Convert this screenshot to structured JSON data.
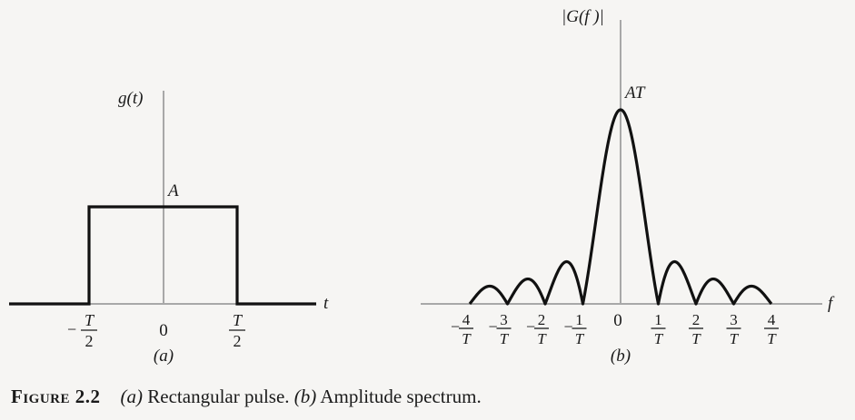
{
  "panel_a": {
    "y_axis_label": "g(t)",
    "t_axis_label": "t",
    "amplitude_label": "A",
    "tick_zero": "0",
    "tick_neg_minus": "−",
    "tick_num_T": "T",
    "tick_den_2": "2",
    "panel_label": "(a)"
  },
  "panel_b": {
    "y_axis_label": "|G(f )|",
    "f_axis_label": "f",
    "peak_label": "AT",
    "tick_zero": "0",
    "ticks": [
      {
        "sign": "−",
        "num": "4",
        "den": "T"
      },
      {
        "sign": "−",
        "num": "3",
        "den": "T"
      },
      {
        "sign": "−",
        "num": "2",
        "den": "T"
      },
      {
        "sign": "−",
        "num": "1",
        "den": "T"
      },
      {
        "sign": "",
        "num": "1",
        "den": "T"
      },
      {
        "sign": "",
        "num": "2",
        "den": "T"
      },
      {
        "sign": "",
        "num": "3",
        "den": "T"
      },
      {
        "sign": "",
        "num": "4",
        "den": "T"
      }
    ],
    "panel_label": "(b)"
  },
  "caption": {
    "figure_label": "Figure 2.2",
    "part_a_tag": "(a)",
    "part_a_text": " Rectangular pulse. ",
    "part_b_tag": "(b)",
    "part_b_text": " Amplitude spectrum."
  },
  "chart_data": [
    {
      "type": "line",
      "series": [
        {
          "x": [
            "-T",
            "-T/2",
            "-T/2",
            "T/2",
            "T/2",
            "T"
          ],
          "values": [
            0,
            0,
            "A",
            "A",
            0,
            0
          ]
        }
      ]
    },
    {
      "type": "line",
      "series": [
        {
          "function": "|sinc(fT)|",
          "xlim": [
            "-4/T",
            "4/T"
          ],
          "peak": "AT",
          "zeros": [
            "-4/T",
            "-3/T",
            "-2/T",
            "-1/T",
            "1/T",
            "2/T",
            "3/T",
            "4/T"
          ]
        }
      ]
    }
  ]
}
